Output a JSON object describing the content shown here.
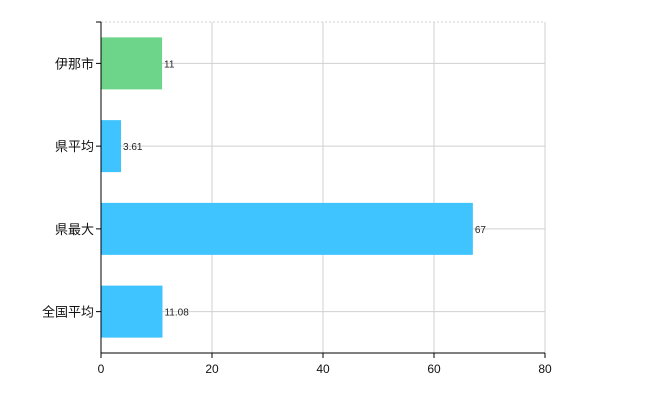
{
  "chart_data": {
    "type": "bar",
    "orientation": "horizontal",
    "categories": [
      "伊那市",
      "県平均",
      "県最大",
      "全国平均"
    ],
    "values": [
      11,
      3.61,
      67,
      11.08
    ],
    "value_labels": [
      "11",
      "3.61",
      "67",
      "11.08"
    ],
    "bar_colors": [
      "#6dd58a",
      "#40c4ff",
      "#40c4ff",
      "#40c4ff"
    ],
    "xlim": [
      0,
      80
    ],
    "xticks": [
      0,
      20,
      40,
      60,
      80
    ],
    "xtick_labels": [
      "0",
      "20",
      "40",
      "60",
      "80"
    ],
    "grid": true,
    "legend": "none"
  }
}
